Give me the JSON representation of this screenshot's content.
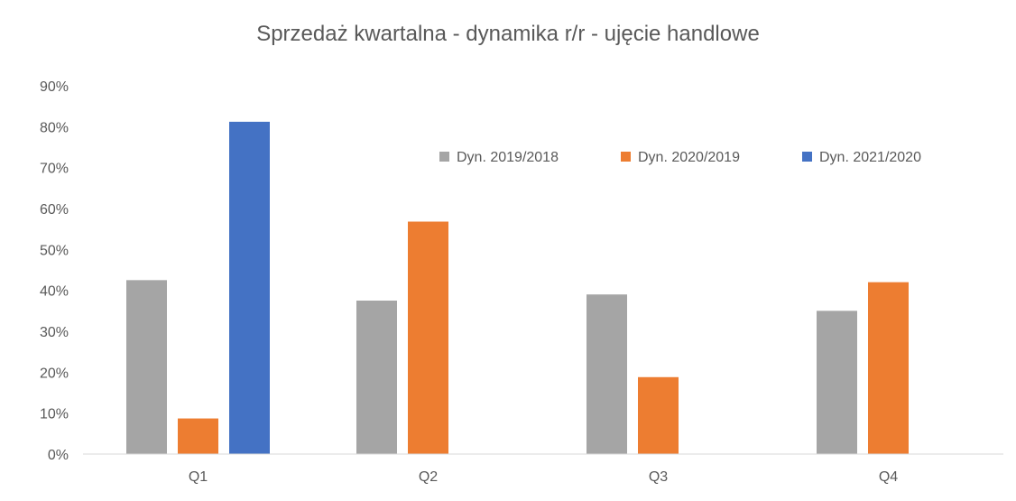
{
  "chart_data": {
    "type": "bar",
    "title": "Sprzedaż kwartalna - dynamika r/r - ujęcie handlowe",
    "xlabel": "",
    "ylabel": "",
    "categories": [
      "Q1",
      "Q2",
      "Q3",
      "Q4"
    ],
    "ylim": [
      0,
      0.9
    ],
    "yticks": [
      0,
      0.1,
      0.2,
      0.3,
      0.4,
      0.5,
      0.6,
      0.7,
      0.8,
      0.9
    ],
    "ytick_labels": [
      "0%",
      "10%",
      "20%",
      "30%",
      "40%",
      "50%",
      "60%",
      "70%",
      "80%",
      "90%"
    ],
    "grid": false,
    "legend_position": "top-right",
    "series": [
      {
        "name": "Dyn. 2019/2018",
        "color": "#a5a5a5",
        "values": [
          0.425,
          0.375,
          0.39,
          0.35
        ]
      },
      {
        "name": "Dyn. 2020/2019",
        "color": "#ed7d31",
        "values": [
          0.087,
          0.568,
          0.188,
          0.42
        ]
      },
      {
        "name": "Dyn. 2021/2020",
        "color": "#4472c4",
        "values": [
          0.812,
          null,
          null,
          null
        ]
      }
    ]
  }
}
